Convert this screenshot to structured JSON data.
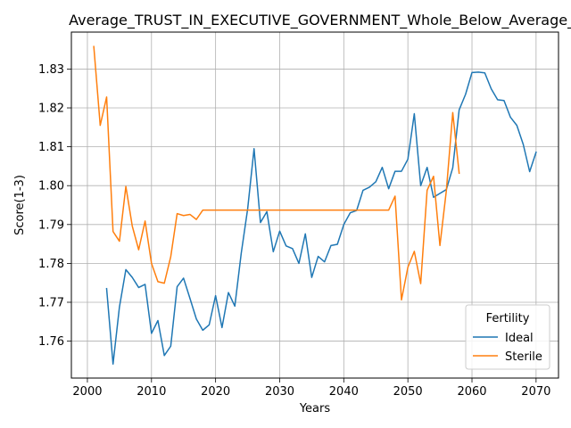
{
  "chart_data": {
    "type": "line",
    "title": "Average_TRUST_IN_EXECUTIVE_GOVERNMENT_Whole_Below_Average_I",
    "xlabel": "Years",
    "ylabel": "Score(1-3)",
    "xlim": [
      1997.5,
      2073.5
    ],
    "ylim": [
      1.7505,
      1.8395
    ],
    "xticks": [
      2000,
      2010,
      2020,
      2030,
      2040,
      2050,
      2060,
      2070
    ],
    "xtick_labels": [
      "2000",
      "2010",
      "2020",
      "2030",
      "2040",
      "2050",
      "2060",
      "2070"
    ],
    "yticks": [
      1.76,
      1.77,
      1.78,
      1.79,
      1.8,
      1.81,
      1.82,
      1.83
    ],
    "ytick_labels": [
      "1.76",
      "1.77",
      "1.78",
      "1.79",
      "1.80",
      "1.81",
      "1.82",
      "1.83"
    ],
    "grid": true,
    "legend": {
      "title": "Fertility",
      "position": "lower-right"
    },
    "series": [
      {
        "name": "Ideal",
        "color": "#1f77b4",
        "x": [
          2003,
          2004,
          2005,
          2006,
          2007,
          2008,
          2009,
          2010,
          2011,
          2012,
          2013,
          2014,
          2015,
          2016,
          2017,
          2018,
          2019,
          2020,
          2021,
          2022,
          2023,
          2024,
          2025,
          2026,
          2027,
          2028,
          2029,
          2030,
          2031,
          2032,
          2033,
          2034,
          2035,
          2036,
          2037,
          2038,
          2039,
          2040,
          2041,
          2042,
          2043,
          2044,
          2045,
          2046,
          2047,
          2048,
          2049,
          2050,
          2051,
          2052,
          2053,
          2054,
          2055,
          2056,
          2057,
          2058,
          2059,
          2060,
          2061,
          2062,
          2063,
          2064,
          2065,
          2066,
          2067,
          2068,
          2069,
          2070
        ],
        "y": [
          1.7735,
          1.7541,
          1.7688,
          1.7784,
          1.7764,
          1.7738,
          1.7746,
          1.762,
          1.7653,
          1.7563,
          1.7587,
          1.774,
          1.7762,
          1.771,
          1.7657,
          1.7628,
          1.7642,
          1.7717,
          1.7635,
          1.7725,
          1.769,
          1.7826,
          1.794,
          1.8095,
          1.7905,
          1.7933,
          1.783,
          1.7883,
          1.7845,
          1.7838,
          1.78,
          1.7876,
          1.7764,
          1.7818,
          1.7804,
          1.7846,
          1.7849,
          1.79,
          1.793,
          1.7936,
          1.7988,
          1.7996,
          1.801,
          1.8047,
          1.7992,
          1.8037,
          1.8037,
          1.8068,
          1.8185,
          1.8,
          1.8047,
          1.797,
          1.798,
          1.799,
          1.8046,
          1.8195,
          1.8235,
          1.8291,
          1.8292,
          1.829,
          1.8249,
          1.8221,
          1.8219,
          1.8176,
          1.8155,
          1.8106,
          1.8036,
          1.8086
        ]
      },
      {
        "name": "Sterile",
        "color": "#ff7f0e",
        "x": [
          2001,
          2002,
          2003,
          2004,
          2005,
          2006,
          2007,
          2008,
          2009,
          2010,
          2011,
          2012,
          2013,
          2014,
          2015,
          2016,
          2017,
          2018,
          2019,
          2020,
          2021,
          2022,
          2023,
          2024,
          2025,
          2026,
          2027,
          2028,
          2029,
          2030,
          2031,
          2032,
          2033,
          2034,
          2035,
          2036,
          2037,
          2038,
          2039,
          2040,
          2041,
          2042,
          2043,
          2044,
          2045,
          2046,
          2047,
          2048,
          2049,
          2050,
          2051,
          2052,
          2053,
          2054,
          2055,
          2056,
          2057,
          2058
        ],
        "y": [
          1.8358,
          1.8155,
          1.8228,
          1.7882,
          1.7857,
          1.7998,
          1.7896,
          1.7835,
          1.7909,
          1.78,
          1.7753,
          1.7749,
          1.7817,
          1.7928,
          1.7923,
          1.7926,
          1.7913,
          1.7937,
          1.7937,
          1.7937,
          1.7937,
          1.7937,
          1.7937,
          1.7937,
          1.7937,
          1.7937,
          1.7937,
          1.7937,
          1.7937,
          1.7937,
          1.7937,
          1.7937,
          1.7937,
          1.7937,
          1.7937,
          1.7937,
          1.7937,
          1.7937,
          1.7937,
          1.7937,
          1.7937,
          1.7937,
          1.7937,
          1.7937,
          1.7937,
          1.7937,
          1.7937,
          1.7973,
          1.7706,
          1.779,
          1.7831,
          1.7748,
          1.7988,
          1.8024,
          1.7846,
          1.7987,
          1.8188,
          1.8032
        ]
      }
    ]
  }
}
